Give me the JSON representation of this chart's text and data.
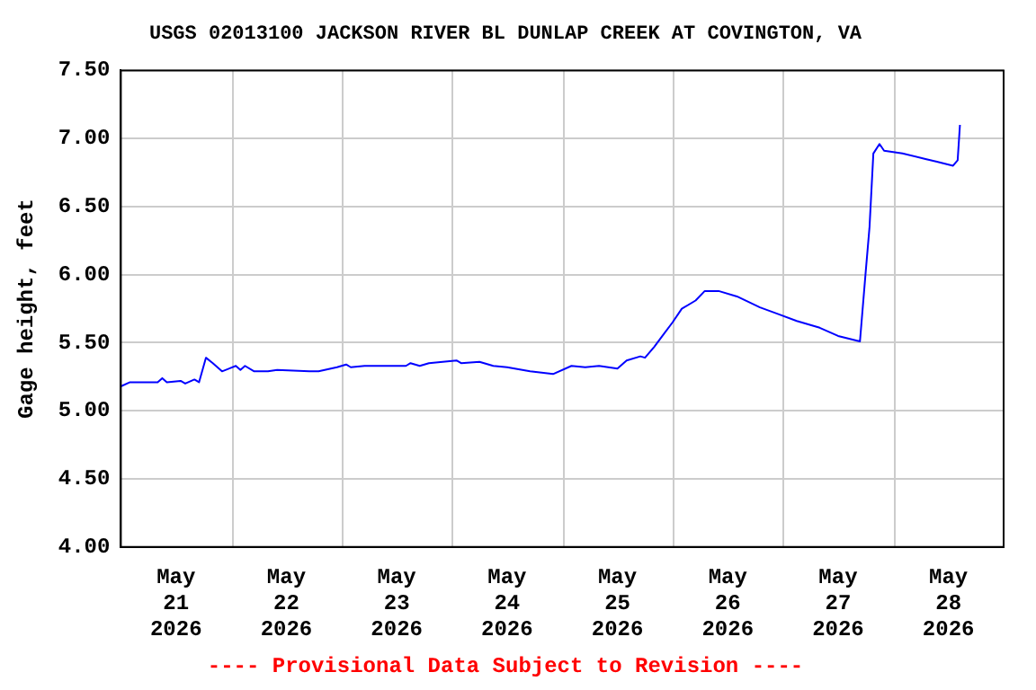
{
  "chart_data": {
    "type": "line",
    "title": "USGS 02013100 JACKSON RIVER BL DUNLAP CREEK AT COVINGTON, VA",
    "ylabel": "Gage height, feet",
    "annotations": [
      "---- Provisional Data Subject to Revision ----"
    ],
    "xlim": [
      "2026-05-21T00:00",
      "2026-05-29T00:00"
    ],
    "xticks": [
      {
        "value": "2026-05-21T12:00",
        "label": "May\n21\n2026"
      },
      {
        "value": "2026-05-22T00:00",
        "label": null
      },
      {
        "value": "2026-05-22T12:00",
        "label": "May\n22\n2026"
      },
      {
        "value": "2026-05-23T00:00",
        "label": null
      },
      {
        "value": "2026-05-23T12:00",
        "label": "May\n23\n2026"
      },
      {
        "value": "2026-05-24T00:00",
        "label": null
      },
      {
        "value": "2026-05-24T12:00",
        "label": "May\n24\n2026"
      },
      {
        "value": "2026-05-25T00:00",
        "label": null
      },
      {
        "value": "2026-05-25T12:00",
        "label": "May\n25\n2026"
      },
      {
        "value": "2026-05-26T00:00",
        "label": null
      },
      {
        "value": "2026-05-26T12:00",
        "label": "May\n26\n2026"
      },
      {
        "value": "2026-05-27T00:00",
        "label": null
      },
      {
        "value": "2026-05-27T12:00",
        "label": "May\n27\n2026"
      },
      {
        "value": "2026-05-28T00:00",
        "label": null
      },
      {
        "value": "2026-05-28T12:00",
        "label": "May\n28\n2026"
      }
    ],
    "ylim": [
      4.0,
      7.5
    ],
    "yticks": [
      {
        "value": 4.0,
        "label": "4.00"
      },
      {
        "value": 4.5,
        "label": "4.50"
      },
      {
        "value": 5.0,
        "label": "5.00"
      },
      {
        "value": 5.5,
        "label": "5.50"
      },
      {
        "value": 6.0,
        "label": "6.00"
      },
      {
        "value": 6.5,
        "label": "6.50"
      },
      {
        "value": 7.0,
        "label": "7.00"
      },
      {
        "value": 7.5,
        "label": "7.50"
      }
    ],
    "grid": true,
    "legend": false,
    "marker": "none",
    "line_style": "solid",
    "x": [
      "2026-05-21T00:00",
      "2026-05-21T02:00",
      "2026-05-21T08:00",
      "2026-05-21T09:00",
      "2026-05-21T10:00",
      "2026-05-21T13:00",
      "2026-05-21T14:00",
      "2026-05-21T16:00",
      "2026-05-21T17:00",
      "2026-05-21T18:30",
      "2026-05-21T20:00",
      "2026-05-21T22:00",
      "2026-05-22T01:00",
      "2026-05-22T02:00",
      "2026-05-22T03:00",
      "2026-05-22T05:00",
      "2026-05-22T08:00",
      "2026-05-22T10:00",
      "2026-05-22T17:00",
      "2026-05-22T19:00",
      "2026-05-22T23:00",
      "2026-05-23T01:00",
      "2026-05-23T02:00",
      "2026-05-23T05:00",
      "2026-05-23T14:00",
      "2026-05-23T15:00",
      "2026-05-23T17:00",
      "2026-05-23T19:00",
      "2026-05-24T01:00",
      "2026-05-24T02:00",
      "2026-05-24T06:00",
      "2026-05-24T09:00",
      "2026-05-24T12:00",
      "2026-05-24T17:00",
      "2026-05-24T22:00",
      "2026-05-25T02:00",
      "2026-05-25T05:00",
      "2026-05-25T08:00",
      "2026-05-25T12:00",
      "2026-05-25T14:00",
      "2026-05-25T17:00",
      "2026-05-25T18:00",
      "2026-05-25T20:00",
      "2026-05-25T22:00",
      "2026-05-26T00:00",
      "2026-05-26T02:00",
      "2026-05-26T05:00",
      "2026-05-26T07:00",
      "2026-05-26T10:00",
      "2026-05-26T14:00",
      "2026-05-26T19:00",
      "2026-05-26T23:00",
      "2026-05-27T03:00",
      "2026-05-27T08:00",
      "2026-05-27T12:00",
      "2026-05-27T16:45",
      "2026-05-27T18:00",
      "2026-05-27T18:50",
      "2026-05-27T19:40",
      "2026-05-27T21:00",
      "2026-05-27T22:00",
      "2026-05-28T02:00",
      "2026-05-28T07:00",
      "2026-05-28T09:30",
      "2026-05-28T13:00",
      "2026-05-28T14:00",
      "2026-05-28T14:30"
    ],
    "series": [
      {
        "color": "#0000ff",
        "values": [
          5.18,
          5.21,
          5.21,
          5.24,
          5.21,
          5.22,
          5.2,
          5.23,
          5.21,
          5.39,
          5.35,
          5.29,
          5.33,
          5.3,
          5.33,
          5.29,
          5.29,
          5.3,
          5.29,
          5.29,
          5.32,
          5.34,
          5.32,
          5.33,
          5.33,
          5.35,
          5.33,
          5.35,
          5.37,
          5.35,
          5.36,
          5.33,
          5.32,
          5.29,
          5.27,
          5.33,
          5.32,
          5.33,
          5.31,
          5.37,
          5.4,
          5.39,
          5.47,
          5.56,
          5.65,
          5.75,
          5.81,
          5.88,
          5.88,
          5.84,
          5.76,
          5.71,
          5.66,
          5.61,
          5.55,
          5.51,
          6.02,
          6.35,
          6.89,
          6.96,
          6.91,
          6.89,
          6.85,
          6.83,
          6.8,
          6.84,
          7.1
        ]
      }
    ]
  }
}
